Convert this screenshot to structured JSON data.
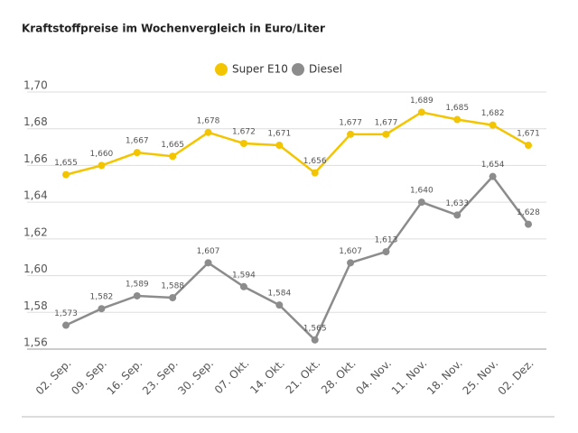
{
  "chart_data": {
    "type": "line",
    "title": "Kraftstoffpreise im Wochenvergleich in Euro/Liter",
    "categories": [
      "02. Sep.",
      "09. Sep.",
      "16. Sep.",
      "23. Sep.",
      "30. Sep.",
      "07. Okt.",
      "14. Okt.",
      "21. Okt.",
      "28. Okt.",
      "04. Nov.",
      "11. Nov.",
      "18. Nov.",
      "25. Nov.",
      "02. Dez."
    ],
    "series": [
      {
        "name": "Super E10",
        "color": "#f3c500",
        "values": [
          1.655,
          1.66,
          1.667,
          1.665,
          1.678,
          1.672,
          1.671,
          1.656,
          1.677,
          1.677,
          1.689,
          1.685,
          1.682,
          1.671
        ],
        "value_labels": [
          "1,655",
          "1,660",
          "1,667",
          "1,665",
          "1,678",
          "1,672",
          "1,671",
          "1,656",
          "1,677",
          "1,677",
          "1,689",
          "1,685",
          "1,682",
          "1,671"
        ]
      },
      {
        "name": "Diesel",
        "color": "#8c8c8c",
        "values": [
          1.573,
          1.582,
          1.589,
          1.588,
          1.607,
          1.594,
          1.584,
          1.565,
          1.607,
          1.613,
          1.64,
          1.633,
          1.654,
          1.628
        ],
        "value_labels": [
          "1,573",
          "1,582",
          "1,589",
          "1,588",
          "1,607",
          "1,594",
          "1,584",
          "1,565",
          "1,607",
          "1,613",
          "1,640",
          "1,633",
          "1,654",
          "1,628"
        ]
      }
    ],
    "ylim": [
      1.56,
      1.7
    ],
    "yticks": [
      {
        "value": 1.56,
        "label": "1,56"
      },
      {
        "value": 1.58,
        "label": "1,58"
      },
      {
        "value": 1.6,
        "label": "1,60"
      },
      {
        "value": 1.62,
        "label": "1,62"
      },
      {
        "value": 1.64,
        "label": "1,64"
      },
      {
        "value": 1.66,
        "label": "1,66"
      },
      {
        "value": 1.68,
        "label": "1,68"
      },
      {
        "value": 1.7,
        "label": "1,70"
      }
    ],
    "grid": true,
    "legend": "top"
  }
}
